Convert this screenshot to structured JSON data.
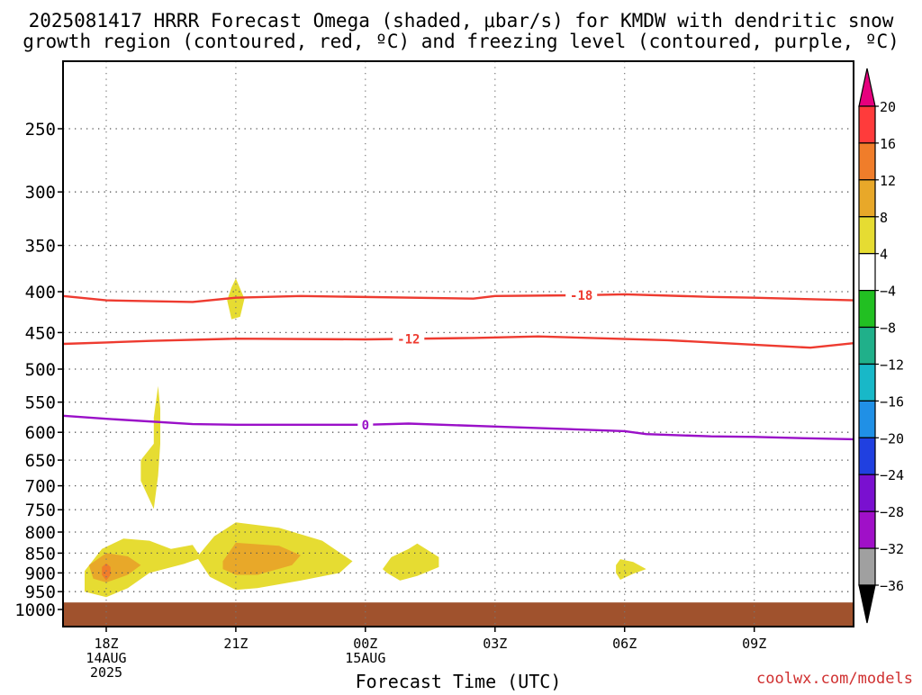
{
  "chart_data": {
    "type": "heatmap",
    "title_line1": "2025081417 HRRR Forecast Omega (shaded, μbar/s) for KMDW with dendritic snow",
    "title_line2": "growth region (contoured, red, ºC) and freezing level (contoured, purple, ºC)",
    "xlabel": "Forecast Time (UTC)",
    "ylabel": "",
    "credit": "coolwx.com/models",
    "x_axis": {
      "unit": "hours since 2025-08-14 14Z (init 17Z)",
      "range": [
        17,
        35.3
      ],
      "ticks": [
        {
          "x": 18,
          "label1": "18Z",
          "label2": "14AUG",
          "label3": "2025"
        },
        {
          "x": 21,
          "label1": "21Z",
          "label2": "",
          "label3": ""
        },
        {
          "x": 24,
          "label1": "00Z",
          "label2": "15AUG",
          "label3": ""
        },
        {
          "x": 27,
          "label1": "03Z",
          "label2": "",
          "label3": ""
        },
        {
          "x": 30,
          "label1": "06Z",
          "label2": "",
          "label3": ""
        },
        {
          "x": 33,
          "label1": "09Z",
          "label2": "",
          "label3": ""
        }
      ]
    },
    "y_axis": {
      "unit": "hPa",
      "scale": "log",
      "inverted": true,
      "range": [
        1000,
        200
      ],
      "ticks": [
        250,
        300,
        350,
        400,
        450,
        500,
        550,
        600,
        650,
        700,
        750,
        800,
        850,
        900,
        950,
        1000
      ]
    },
    "grid": true,
    "colorbar": {
      "position": "right",
      "labels": [
        "20",
        "16",
        "12",
        "8",
        "4",
        "−4",
        "−8",
        "−12",
        "−16",
        "−20",
        "−24",
        "−28",
        "−32",
        "−36"
      ],
      "colors": [
        "#e6007e",
        "#ff3b3b",
        "#f07d2a",
        "#e8a829",
        "#e6dc32",
        "#ffffff",
        "#22c022",
        "#20b08a",
        "#18b8c8",
        "#2090e6",
        "#2040e0",
        "#7a10d0",
        "#a010c8",
        "#a0a0a0",
        "#000000"
      ]
    },
    "series": [
      {
        "name": "-18",
        "color": "#ee3b30",
        "points": [
          [
            17,
            405
          ],
          [
            18,
            410
          ],
          [
            20,
            412
          ],
          [
            21,
            407
          ],
          [
            22.5,
            405
          ],
          [
            26.5,
            408
          ],
          [
            27,
            405
          ],
          [
            29,
            404
          ],
          [
            30,
            403
          ],
          [
            32,
            406
          ],
          [
            33,
            407
          ],
          [
            35.3,
            410
          ]
        ]
      },
      {
        "name": "-12",
        "color": "#ee3b30",
        "points": [
          [
            17,
            465
          ],
          [
            18,
            463
          ],
          [
            19,
            461
          ],
          [
            21,
            458
          ],
          [
            24,
            459
          ],
          [
            26.5,
            457
          ],
          [
            28,
            455
          ],
          [
            31,
            460
          ],
          [
            33,
            466
          ],
          [
            34.3,
            470
          ],
          [
            35.3,
            464
          ]
        ]
      },
      {
        "name": "0",
        "color": "#9a10c8",
        "points": [
          [
            17,
            572
          ],
          [
            18,
            577
          ],
          [
            20,
            586
          ],
          [
            21,
            587
          ],
          [
            22,
            587
          ],
          [
            24,
            587
          ],
          [
            25,
            585
          ],
          [
            27,
            590
          ],
          [
            30,
            598
          ],
          [
            30.5,
            603
          ],
          [
            32,
            607
          ],
          [
            33,
            608
          ],
          [
            34,
            610
          ],
          [
            35.3,
            612
          ]
        ]
      }
    ],
    "shaded_regions": [
      {
        "level": "4-8",
        "color": "#e6dc32",
        "points": [
          [
            17.5,
            895
          ],
          [
            17.9,
            840
          ],
          [
            18.4,
            815
          ],
          [
            19,
            820
          ],
          [
            19.5,
            840
          ],
          [
            20,
            830
          ],
          [
            20.2,
            862
          ],
          [
            19.8,
            877
          ],
          [
            19,
            900
          ],
          [
            18.5,
            940
          ],
          [
            18,
            965
          ],
          [
            17.5,
            950
          ]
        ]
      },
      {
        "level": "8-12",
        "color": "#e8a829",
        "points": [
          [
            17.6,
            880
          ],
          [
            18,
            850
          ],
          [
            18.5,
            858
          ],
          [
            18.8,
            880
          ],
          [
            18.5,
            905
          ],
          [
            18,
            925
          ],
          [
            17.7,
            915
          ]
        ]
      },
      {
        "level": "12-16",
        "color": "#f07d2a",
        "points": [
          [
            18,
            875
          ],
          [
            18.1,
            885
          ],
          [
            18.1,
            905
          ],
          [
            18,
            920
          ],
          [
            17.9,
            905
          ],
          [
            17.9,
            885
          ]
        ]
      },
      {
        "level": "4-8",
        "color": "#e6dc32",
        "points": [
          [
            18.8,
            650
          ],
          [
            19.1,
            620
          ],
          [
            19.1,
            575
          ],
          [
            19.2,
            525
          ],
          [
            19.25,
            560
          ],
          [
            19.25,
            620
          ],
          [
            19.2,
            680
          ],
          [
            19.1,
            748
          ],
          [
            18.8,
            690
          ]
        ]
      },
      {
        "level": "4-8",
        "color": "#e6dc32",
        "points": [
          [
            20.9,
            395
          ],
          [
            21,
            385
          ],
          [
            21.2,
            408
          ],
          [
            21.1,
            430
          ],
          [
            20.9,
            433
          ],
          [
            20.8,
            410
          ]
        ]
      },
      {
        "level": "4-8",
        "color": "#e6dc32",
        "points": [
          [
            20.1,
            860
          ],
          [
            20.5,
            810
          ],
          [
            21,
            778
          ],
          [
            22,
            790
          ],
          [
            23,
            820
          ],
          [
            23.7,
            870
          ],
          [
            23.4,
            900
          ],
          [
            22.5,
            920
          ],
          [
            21.5,
            940
          ],
          [
            21,
            945
          ],
          [
            20.4,
            910
          ]
        ]
      },
      {
        "level": "8-12",
        "color": "#e8a829",
        "points": [
          [
            20.7,
            870
          ],
          [
            21,
            825
          ],
          [
            22,
            832
          ],
          [
            22.5,
            855
          ],
          [
            22.3,
            880
          ],
          [
            21.5,
            905
          ],
          [
            21,
            905
          ],
          [
            20.7,
            890
          ]
        ]
      },
      {
        "level": "4-8",
        "color": "#e6dc32",
        "points": [
          [
            24.4,
            890
          ],
          [
            24.6,
            860
          ],
          [
            25,
            840
          ],
          [
            25.2,
            827
          ],
          [
            25.7,
            860
          ],
          [
            25.7,
            885
          ],
          [
            25.2,
            908
          ],
          [
            24.8,
            920
          ],
          [
            24.5,
            900
          ]
        ]
      },
      {
        "level": "4-8",
        "color": "#e6dc32",
        "points": [
          [
            29.8,
            880
          ],
          [
            29.9,
            865
          ],
          [
            30.2,
            872
          ],
          [
            30.5,
            890
          ],
          [
            30.2,
            902
          ],
          [
            29.9,
            918
          ],
          [
            29.8,
            900
          ]
        ]
      }
    ],
    "surface_band": {
      "color": "#a0522d",
      "range": [
        980,
        1000
      ]
    }
  }
}
